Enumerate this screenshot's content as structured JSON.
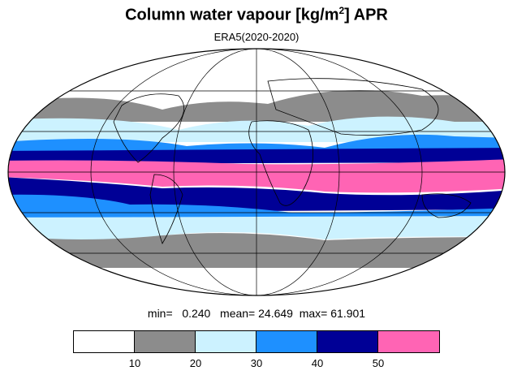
{
  "title": {
    "main": "Column water vapour [kg/m",
    "sup": "2",
    "tail": "] APR"
  },
  "subtitle": "ERA5(2020-2020)",
  "stats": {
    "min_label": "min=",
    "min_value": "0.240",
    "mean_label": "mean=",
    "mean_value": "24.649",
    "max_label": "max=",
    "max_value": "61.901"
  },
  "colorbar": {
    "colors": [
      "#ffffff",
      "#8c8c8c",
      "#ccf2ff",
      "#1e90ff",
      "#000096",
      "#ff64b4"
    ],
    "ticks": [
      "10",
      "20",
      "30",
      "40",
      "50"
    ]
  },
  "map": {
    "projection": "Mollweide",
    "band_colors": {
      "white": "#ffffff",
      "gray": "#8c8c8c",
      "light_blue": "#ccf2ff",
      "blue": "#1e90ff",
      "navy": "#000096",
      "pink": "#ff64b4"
    }
  }
}
